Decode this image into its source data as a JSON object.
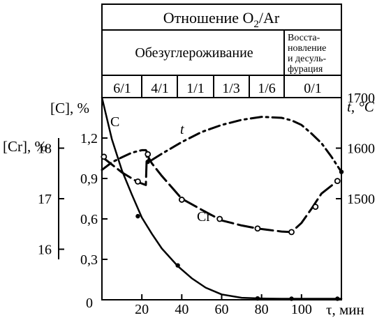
{
  "header": {
    "title_prefix": "Отношение O",
    "title_sub": "2",
    "title_suffix": "/Ar",
    "stage_1": "Обезуглероживание",
    "stage_2_lines": [
      "Восста-",
      "новление",
      "и десуль-",
      "фурация"
    ],
    "ratios": [
      "6/1",
      "4/1",
      "1/1",
      "1/3",
      "1/6",
      "0/1"
    ]
  },
  "chart_data": {
    "type": "line",
    "xlabel": "τ, мин",
    "x_ticks": [
      "0",
      "20",
      "40",
      "60",
      "80",
      "100"
    ],
    "xlim": [
      0,
      120
    ],
    "axes": {
      "carbon": {
        "label": "[C], %",
        "ticks": [
          "0,3",
          "0,6",
          "0,9",
          "1,2"
        ],
        "tick_values": [
          0.3,
          0.6,
          0.9,
          1.2
        ],
        "ylim": [
          0,
          1.5
        ],
        "zero_label": "0"
      },
      "chromium": {
        "label": "[Cr], %",
        "ticks": [
          "16",
          "17",
          "18"
        ],
        "tick_values": [
          16,
          17,
          18
        ],
        "ylim": [
          15.0,
          19.0
        ]
      },
      "temperature": {
        "label": "t, °C",
        "ticks": [
          "1500",
          "1600",
          "1700"
        ],
        "tick_values": [
          1500,
          1600,
          1700
        ],
        "ylim": [
          1300,
          1700
        ]
      }
    },
    "series": [
      {
        "name": "C",
        "axis": "carbon",
        "style": "solid",
        "x": [
          0,
          5,
          10,
          15,
          20,
          25,
          30,
          38,
          45,
          52,
          60,
          70,
          80,
          90,
          100,
          120
        ],
        "y": [
          1.5,
          1.19,
          0.96,
          0.78,
          0.61,
          0.49,
          0.38,
          0.25,
          0.16,
          0.09,
          0.04,
          0.015,
          0.01,
          0.008,
          0.008,
          0.008
        ],
        "marker_x": [
          18,
          38,
          78,
          95,
          118
        ],
        "marker_y": [
          0.62,
          0.255,
          0.01,
          0.008,
          0.008
        ]
      },
      {
        "name": "Cr",
        "axis": "chromium",
        "style": "dash",
        "x": [
          0,
          10,
          18,
          22,
          22.5,
          25,
          30,
          40,
          50,
          60,
          70,
          78,
          90,
          95,
          100,
          105,
          110,
          118
        ],
        "y": [
          17.83,
          17.52,
          17.33,
          17.27,
          17.88,
          17.7,
          17.45,
          17.0,
          16.78,
          16.57,
          16.47,
          16.41,
          16.35,
          16.34,
          16.52,
          16.8,
          17.1,
          17.35
        ],
        "marker_x": [
          1,
          18,
          23,
          40,
          59,
          78,
          95,
          107,
          118
        ],
        "marker_y": [
          17.83,
          17.34,
          17.88,
          16.98,
          16.6,
          16.41,
          16.34,
          16.84,
          17.35
        ]
      },
      {
        "name": "t",
        "axis": "temperature",
        "style": "dash-dot",
        "x": [
          0,
          5,
          10,
          15,
          20,
          22,
          23,
          23.5,
          30,
          40,
          50,
          60,
          70,
          80,
          90,
          95,
          100,
          105,
          110,
          115,
          120
        ],
        "y": [
          1557,
          1572,
          1582,
          1591,
          1596,
          1596,
          1590,
          1573,
          1589,
          1612,
          1632,
          1646,
          1656,
          1662,
          1660,
          1655,
          1646,
          1629,
          1610,
          1583,
          1553
        ],
        "marker_x": [
          23,
          120
        ],
        "marker_y": [
          1573,
          1553
        ]
      }
    ],
    "series_labels": {
      "C": "C",
      "Cr": "Cr",
      "t": "t"
    }
  }
}
